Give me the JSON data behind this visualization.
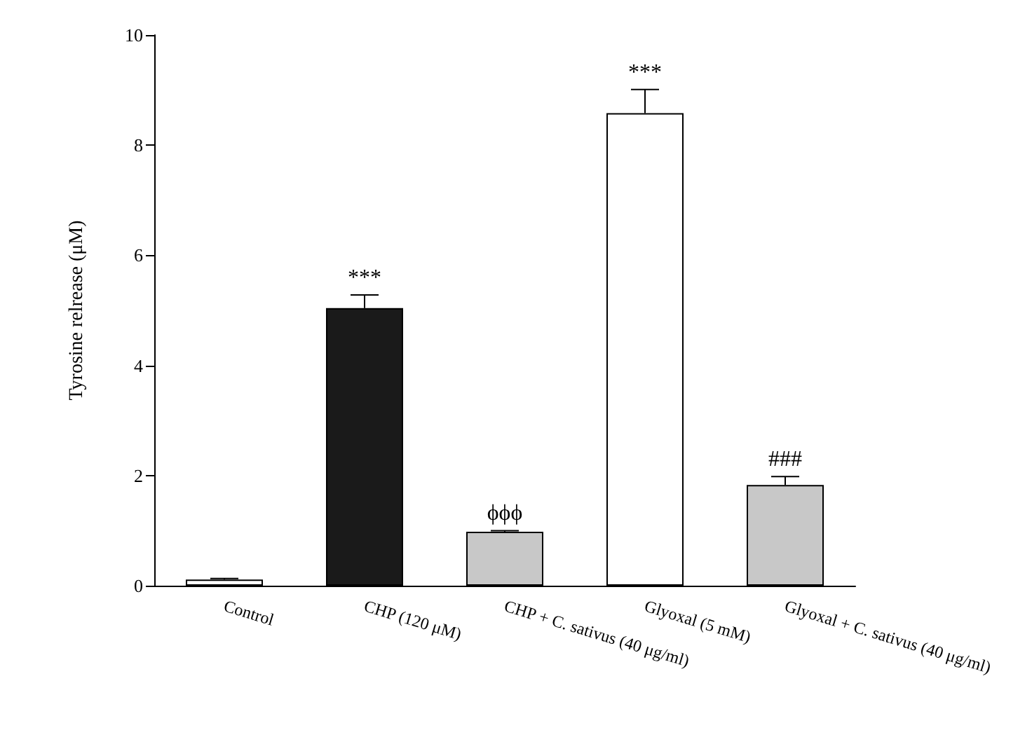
{
  "chart_data": {
    "type": "bar",
    "ylabel": "Tyrosine relrease (μM)",
    "categories": [
      "Control",
      "CHP (120 μM)",
      "CHP + C. sativus (40 μg/ml)",
      "Glyoxal (5 mM)",
      "Glyoxal + C. sativus (40 μg/ml)"
    ],
    "values": [
      0.11,
      5.04,
      0.98,
      8.58,
      1.83
    ],
    "colors": [
      "#ffffff",
      "#1a1a1a",
      "#c8c8c8",
      "#ffffff",
      "#c8c8c8"
    ],
    "errors": [
      [
        0.11,
        0.13
      ],
      [
        5.04,
        5.28
      ],
      [
        0.98,
        1.0
      ],
      [
        8.58,
        9.01
      ],
      [
        1.83,
        1.98
      ]
    ],
    "ylim": [
      0,
      10
    ],
    "yticks": [
      0,
      2,
      4,
      6,
      8,
      10
    ],
    "annotations": [
      {
        "text": "***",
        "x": "CHP (120 μM)",
        "y": 5.28
      },
      {
        "text": "ϕϕϕ",
        "x": "CHP + C. sativus (40 μg/ml)",
        "y": 1.0
      },
      {
        "text": "***",
        "x": "Glyoxal (5 mM)",
        "y": 9.01
      },
      {
        "text": "###",
        "x": "Glyoxal + C. sativus (40 μg/ml)",
        "y": 1.98
      }
    ]
  }
}
